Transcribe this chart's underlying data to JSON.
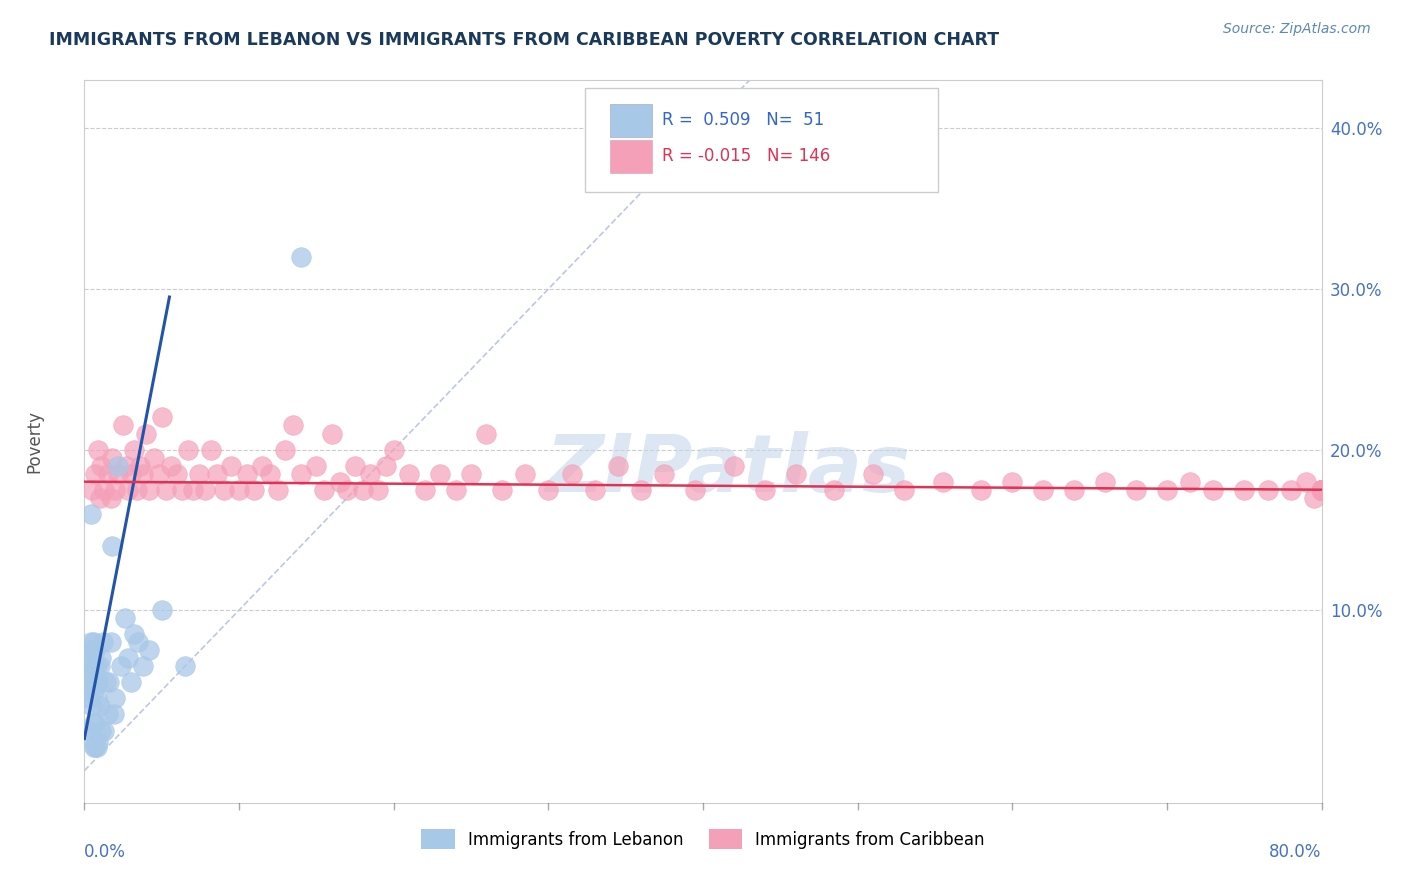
{
  "title": "IMMIGRANTS FROM LEBANON VS IMMIGRANTS FROM CARIBBEAN POVERTY CORRELATION CHART",
  "source_text": "Source: ZipAtlas.com",
  "ylabel": "Poverty",
  "ylabel_right_ticks": [
    "10.0%",
    "20.0%",
    "30.0%",
    "40.0%"
  ],
  "ylabel_right_vals": [
    0.1,
    0.2,
    0.3,
    0.4
  ],
  "xlim": [
    0.0,
    0.8
  ],
  "ylim": [
    -0.02,
    0.43
  ],
  "R_lebanon": 0.509,
  "N_lebanon": 51,
  "R_caribbean": -0.015,
  "N_caribbean": 146,
  "color_lebanon": "#a8c8e8",
  "color_caribbean": "#f4a0b8",
  "color_lebanon_line": "#2255aa",
  "color_caribbean_line": "#dd3355",
  "color_diagonal": "#aabbdd",
  "watermark_color": "#c5d8ec",
  "title_color": "#1a3a5c",
  "source_color": "#5a8ab0",
  "legend_R_color": "#3366cc",
  "legend_R2_color": "#dd3355",
  "lebanon_x": [
    0.002,
    0.002,
    0.003,
    0.003,
    0.003,
    0.004,
    0.004,
    0.004,
    0.005,
    0.005,
    0.005,
    0.005,
    0.006,
    0.006,
    0.006,
    0.006,
    0.006,
    0.007,
    0.007,
    0.007,
    0.007,
    0.008,
    0.008,
    0.008,
    0.009,
    0.009,
    0.01,
    0.01,
    0.011,
    0.011,
    0.012,
    0.013,
    0.014,
    0.015,
    0.016,
    0.017,
    0.018,
    0.019,
    0.02,
    0.022,
    0.024,
    0.026,
    0.028,
    0.03,
    0.032,
    0.035,
    0.038,
    0.042,
    0.05,
    0.065,
    0.14
  ],
  "lebanon_y": [
    0.065,
    0.05,
    0.025,
    0.045,
    0.07,
    0.06,
    0.08,
    0.16,
    0.02,
    0.04,
    0.055,
    0.075,
    0.015,
    0.03,
    0.05,
    0.065,
    0.08,
    0.015,
    0.03,
    0.06,
    0.075,
    0.015,
    0.045,
    0.065,
    0.018,
    0.055,
    0.04,
    0.065,
    0.025,
    0.07,
    0.08,
    0.025,
    0.055,
    0.035,
    0.055,
    0.08,
    0.14,
    0.035,
    0.045,
    0.19,
    0.065,
    0.095,
    0.07,
    0.055,
    0.085,
    0.08,
    0.065,
    0.075,
    0.1,
    0.065,
    0.32
  ],
  "caribbean_x": [
    0.005,
    0.007,
    0.009,
    0.01,
    0.011,
    0.013,
    0.015,
    0.017,
    0.018,
    0.02,
    0.022,
    0.025,
    0.027,
    0.028,
    0.03,
    0.032,
    0.034,
    0.036,
    0.038,
    0.04,
    0.042,
    0.045,
    0.048,
    0.05,
    0.053,
    0.056,
    0.06,
    0.063,
    0.067,
    0.07,
    0.074,
    0.078,
    0.082,
    0.086,
    0.09,
    0.095,
    0.1,
    0.105,
    0.11,
    0.115,
    0.12,
    0.125,
    0.13,
    0.135,
    0.14,
    0.15,
    0.155,
    0.16,
    0.165,
    0.17,
    0.175,
    0.18,
    0.185,
    0.19,
    0.195,
    0.2,
    0.21,
    0.22,
    0.23,
    0.24,
    0.25,
    0.26,
    0.27,
    0.285,
    0.3,
    0.315,
    0.33,
    0.345,
    0.36,
    0.375,
    0.395,
    0.42,
    0.44,
    0.46,
    0.485,
    0.51,
    0.53,
    0.555,
    0.58,
    0.6,
    0.62,
    0.64,
    0.66,
    0.68,
    0.7,
    0.715,
    0.73,
    0.75,
    0.765,
    0.78,
    0.79,
    0.795,
    0.8,
    0.8,
    0.8,
    0.8,
    0.8,
    0.8,
    0.8,
    0.8,
    0.8,
    0.8,
    0.8,
    0.8,
    0.8,
    0.8,
    0.8,
    0.8,
    0.8,
    0.8,
    0.8,
    0.8,
    0.8,
    0.8,
    0.8,
    0.8,
    0.8,
    0.8,
    0.8,
    0.8,
    0.8,
    0.8,
    0.8,
    0.8,
    0.8,
    0.8,
    0.8,
    0.8,
    0.8,
    0.8,
    0.8,
    0.8,
    0.8,
    0.8,
    0.8,
    0.8,
    0.8,
    0.8,
    0.8,
    0.8,
    0.8,
    0.8,
    0.8
  ],
  "caribbean_y": [
    0.175,
    0.185,
    0.2,
    0.17,
    0.19,
    0.175,
    0.185,
    0.17,
    0.195,
    0.175,
    0.185,
    0.215,
    0.19,
    0.175,
    0.185,
    0.2,
    0.175,
    0.19,
    0.185,
    0.21,
    0.175,
    0.195,
    0.185,
    0.22,
    0.175,
    0.19,
    0.185,
    0.175,
    0.2,
    0.175,
    0.185,
    0.175,
    0.2,
    0.185,
    0.175,
    0.19,
    0.175,
    0.185,
    0.175,
    0.19,
    0.185,
    0.175,
    0.2,
    0.215,
    0.185,
    0.19,
    0.175,
    0.21,
    0.18,
    0.175,
    0.19,
    0.175,
    0.185,
    0.175,
    0.19,
    0.2,
    0.185,
    0.175,
    0.185,
    0.175,
    0.185,
    0.21,
    0.175,
    0.185,
    0.175,
    0.185,
    0.175,
    0.19,
    0.175,
    0.185,
    0.175,
    0.19,
    0.175,
    0.185,
    0.175,
    0.185,
    0.175,
    0.18,
    0.175,
    0.18,
    0.175,
    0.175,
    0.18,
    0.175,
    0.175,
    0.18,
    0.175,
    0.175,
    0.175,
    0.175,
    0.18,
    0.17,
    0.175,
    0.175,
    0.175,
    0.175,
    0.175,
    0.175,
    0.175,
    0.175,
    0.175,
    0.175,
    0.175,
    0.175,
    0.175,
    0.175,
    0.175,
    0.175,
    0.175,
    0.175,
    0.175,
    0.175,
    0.175,
    0.175,
    0.175,
    0.175,
    0.175,
    0.175,
    0.175,
    0.175,
    0.175,
    0.175,
    0.175,
    0.175,
    0.175,
    0.175,
    0.175,
    0.175,
    0.175,
    0.175,
    0.175,
    0.175,
    0.175,
    0.175,
    0.175,
    0.175,
    0.175,
    0.175,
    0.175,
    0.175,
    0.175,
    0.175,
    0.175
  ]
}
